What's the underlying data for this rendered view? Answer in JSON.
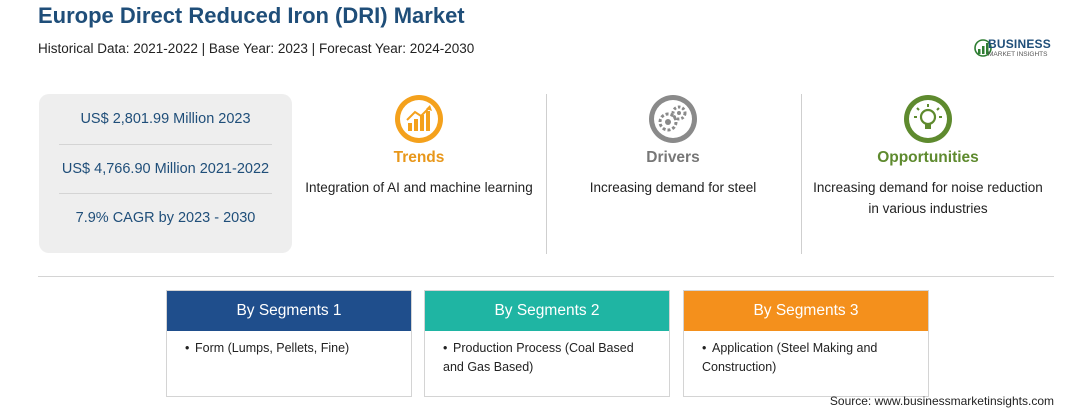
{
  "header": {
    "title": "Europe Direct Reduced Iron (DRI) Market",
    "subtitle": "Historical Data: 2021-2022 | Base Year: 2023 | Forecast Year: 2024-2030"
  },
  "logo": {
    "name": "BUSINESS",
    "tagline": "MARKET INSIGHTS"
  },
  "stats": [
    "US$ 2,801.99 Million 2023",
    "US$ 4,766.90 Million 2021-2022",
    "7.9% CAGR by 2023 - 2030"
  ],
  "factors": {
    "trends": {
      "heading": "Trends",
      "description": "Integration of AI and machine learning",
      "icon": "chart-growth-icon",
      "color": "#f4a11c"
    },
    "drivers": {
      "heading": "Drivers",
      "description": "Increasing demand for steel",
      "icon": "gears-icon",
      "color": "#8a8a8a"
    },
    "opportunities": {
      "heading": "Opportunities",
      "description": "Increasing demand for noise reduction in various industries",
      "icon": "lightbulb-icon",
      "color": "#5e8a2e"
    }
  },
  "segments": [
    {
      "title": "By Segments 1",
      "item": "Form (Lumps, Pellets, Fine)",
      "color": "#1f4e8c"
    },
    {
      "title": "By Segments 2",
      "item": "Production Process (Coal Based and Gas Based)",
      "color": "#1fb5a3"
    },
    {
      "title": "By Segments 3",
      "item": "Application (Steel Making and Construction)",
      "color": "#f4901c"
    }
  ],
  "bullet": "•",
  "source": "Source: www.businessmarketinsights.com"
}
